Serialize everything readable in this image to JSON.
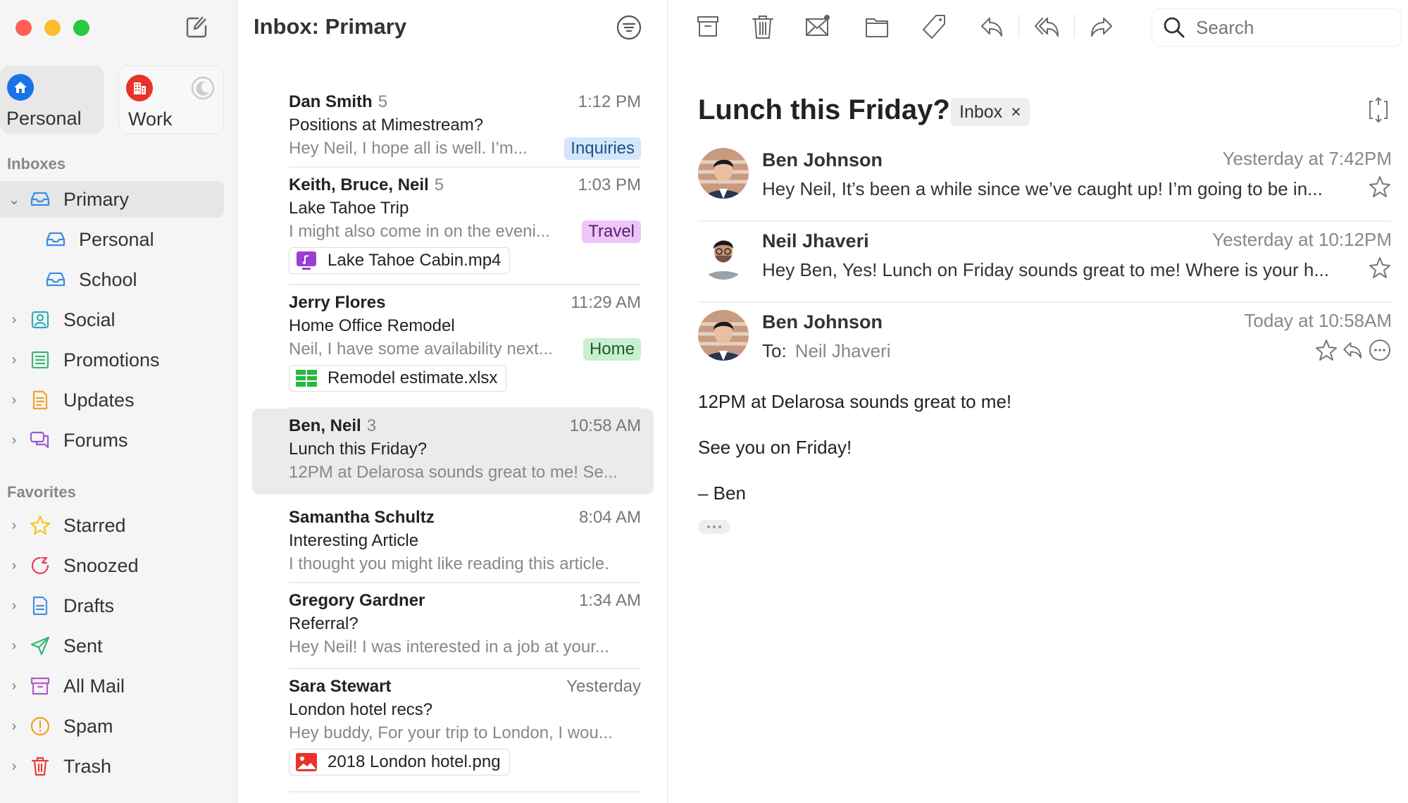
{
  "window": {
    "controls": {
      "close": "#ff5f57",
      "minimize": "#febc2e",
      "zoom": "#28c840"
    }
  },
  "accounts": [
    {
      "label": "Personal",
      "icon": "house-icon",
      "color": "#1a73e8",
      "selected": true
    },
    {
      "label": "Work",
      "icon": "building-icon",
      "color": "#e8322a",
      "selected": false,
      "status_icon": "moon-icon"
    }
  ],
  "sidebar": {
    "inboxes_label": "Inboxes",
    "inboxes": [
      {
        "label": "Primary",
        "icon": "inbox-icon",
        "color": "#3b8de0",
        "expanded": true,
        "selected": true
      },
      {
        "label": "Personal",
        "icon": "inbox-icon",
        "color": "#3b8de0",
        "sub": true
      },
      {
        "label": "School",
        "icon": "inbox-icon",
        "color": "#3b8de0",
        "sub": true
      },
      {
        "label": "Social",
        "icon": "person-icon",
        "color": "#2ab0b8"
      },
      {
        "label": "Promotions",
        "icon": "tag-list-icon",
        "color": "#3cb371"
      },
      {
        "label": "Updates",
        "icon": "document-icon",
        "color": "#f0a030"
      },
      {
        "label": "Forums",
        "icon": "chat-bubbles-icon",
        "color": "#9b59d0"
      }
    ],
    "favorites_label": "Favorites",
    "favorites": [
      {
        "label": "Starred",
        "icon": "star-icon",
        "color": "#f5c518"
      },
      {
        "label": "Snoozed",
        "icon": "snooze-icon",
        "color": "#e8405a"
      },
      {
        "label": "Drafts",
        "icon": "draft-icon",
        "color": "#4a90d9"
      },
      {
        "label": "Sent",
        "icon": "send-icon",
        "color": "#2eb872"
      },
      {
        "label": "All Mail",
        "icon": "archive-icon",
        "color": "#b05cc8"
      },
      {
        "label": "Spam",
        "icon": "exclamation-icon",
        "color": "#f0a020"
      },
      {
        "label": "Trash",
        "icon": "trash-icon",
        "color": "#e8403a"
      }
    ]
  },
  "list": {
    "title": "Inbox: Primary",
    "threads": [
      {
        "from": "Dan Smith",
        "count": "5",
        "time": "1:12 PM",
        "subject": "Positions at Mimestream?",
        "preview": "Hey Neil, I hope all is well. I’m...",
        "tag": {
          "label": "Inquiries",
          "bg": "#d3e6fb",
          "fg": "#1f4f8a"
        }
      },
      {
        "from": "Keith, Bruce, Neil",
        "count": "5",
        "time": "1:03 PM",
        "subject": "Lake Tahoe Trip",
        "preview": "I might also come in on the eveni...",
        "tag": {
          "label": "Travel",
          "bg": "#ecc6f7",
          "fg": "#5a1a72"
        },
        "attachment": {
          "name": "Lake Tahoe Cabin.mp4",
          "icon": "video-file-icon",
          "color": "#9b3fd0"
        }
      },
      {
        "from": "Jerry Flores",
        "count": "",
        "time": "11:29 AM",
        "subject": "Home Office Remodel",
        "preview": "Neil, I have some availability next...",
        "tag": {
          "label": "Home",
          "bg": "#c8efcf",
          "fg": "#1f5a2a"
        },
        "attachment": {
          "name": "Remodel estimate.xlsx",
          "icon": "spreadsheet-file-icon",
          "color": "#28b83c"
        }
      },
      {
        "from": "Ben, Neil",
        "count": "3",
        "time": "10:58 AM",
        "subject": "Lunch this Friday?",
        "preview": "12PM at Delarosa sounds great to me! Se...",
        "selected": true
      },
      {
        "from": "Samantha Schultz",
        "count": "",
        "time": "8:04 AM",
        "subject": "Interesting Article",
        "preview": "I thought you might like reading this article."
      },
      {
        "from": "Gregory Gardner",
        "count": "",
        "time": "1:34 AM",
        "subject": "Referral?",
        "preview": "Hey Neil! I was interested in a job at your..."
      },
      {
        "from": "Sara Stewart",
        "count": "",
        "time": "Yesterday",
        "subject": "London hotel recs?",
        "preview": "Hey buddy, For your trip to London, I wou...",
        "attachment": {
          "name": "2018 London hotel.png",
          "icon": "image-file-icon",
          "color": "#e8322a"
        }
      }
    ]
  },
  "toolbar": {
    "icons": [
      "archive-icon",
      "trash-icon",
      "mark-unread-icon",
      "folder-icon",
      "label-icon",
      "reply-icon",
      "reply-all-icon",
      "forward-icon"
    ],
    "search_placeholder": "Search"
  },
  "reader": {
    "subject": "Lunch this Friday?",
    "label": "Inbox",
    "label_remove": "×",
    "messages": [
      {
        "from": "Ben Johnson",
        "time": "Yesterday at 7:42PM",
        "preview": "Hey Neil, It’s been a while since we’ve caught up! I’m going to be in..."
      },
      {
        "from": "Neil Jhaveri",
        "time": "Yesterday at 10:12PM",
        "preview": "Hey Ben, Yes! Lunch on Friday sounds great to me! Where is your h..."
      },
      {
        "from": "Ben Johnson",
        "time": "Today at 10:58AM",
        "to_label": "To:",
        "to": "Neil Jhaveri",
        "expanded": true
      }
    ],
    "body": [
      "12PM at Delarosa sounds great to me!",
      "See you on Friday!",
      "– Ben"
    ]
  }
}
